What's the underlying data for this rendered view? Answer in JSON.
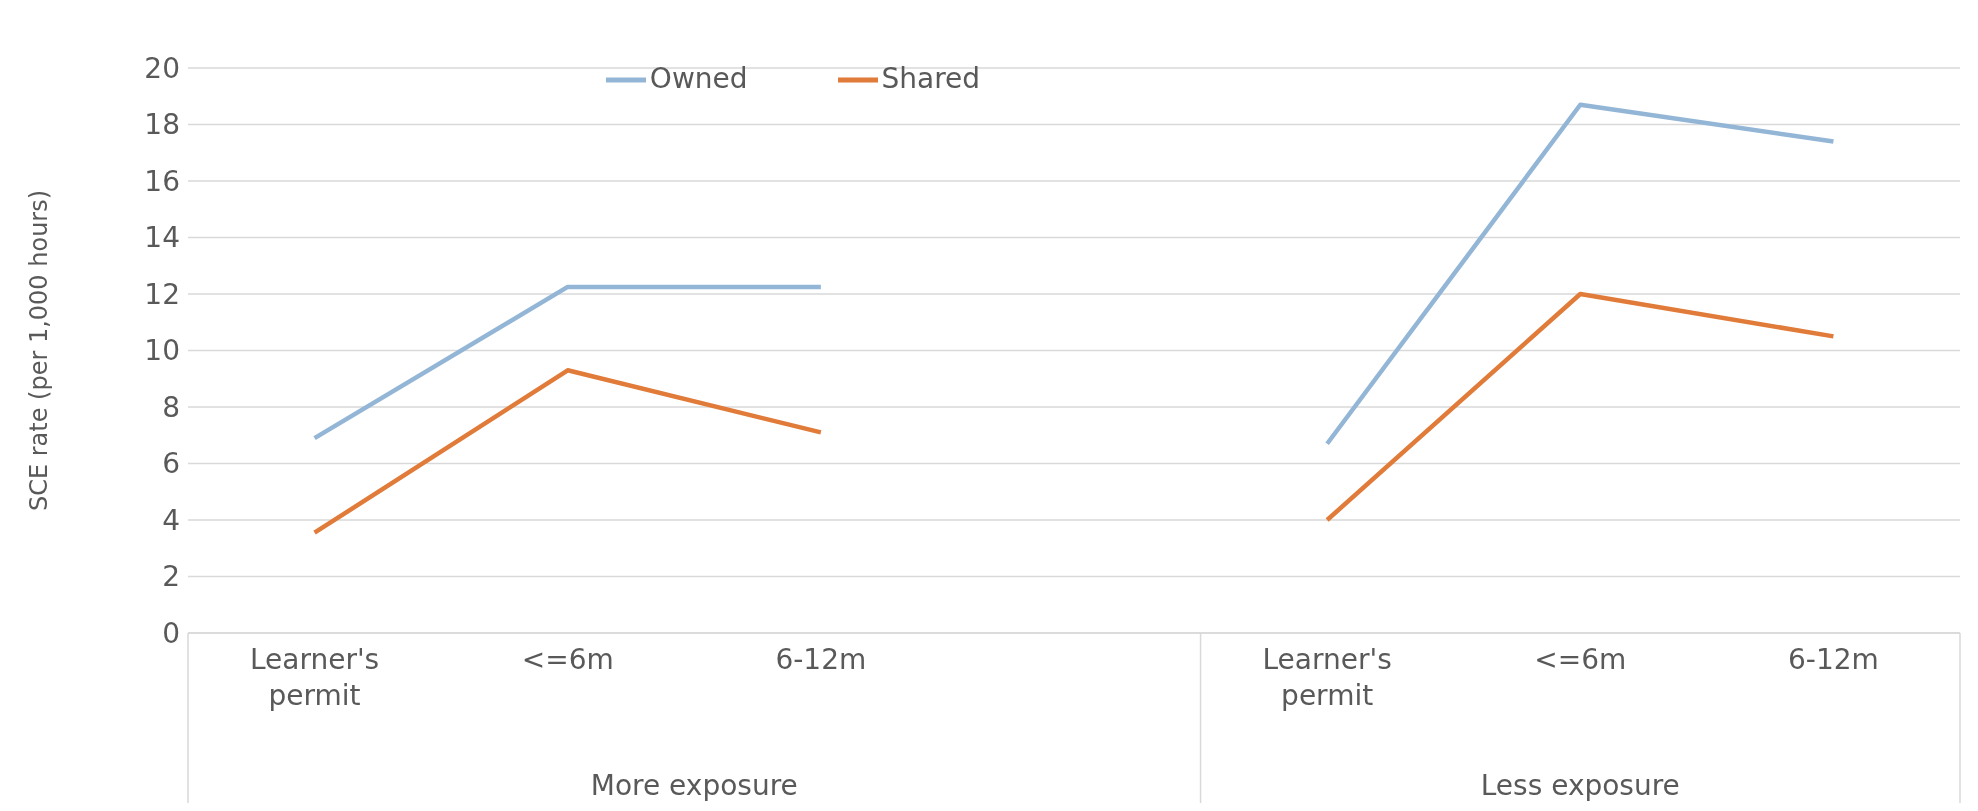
{
  "chart_data": {
    "type": "line",
    "ylabel": "SCE rate (per 1,000 hours)",
    "categories": [
      "Learner's permit",
      "<=6m",
      "6-12m",
      null,
      "Learner's permit",
      "<=6m",
      "6-12m"
    ],
    "series": [
      {
        "name": "Owned",
        "color": "#93b6d6",
        "values": [
          6.9,
          12.25,
          12.25,
          null,
          6.7,
          18.7,
          17.4
        ]
      },
      {
        "name": "Shared",
        "color": "#e07b39",
        "values": [
          3.55,
          9.3,
          7.1,
          null,
          4.0,
          12.0,
          10.5
        ]
      }
    ],
    "annotations": [
      "More exposure",
      "Less exposure"
    ],
    "ylim": [
      0,
      20
    ],
    "yticks": [
      0,
      2,
      4,
      6,
      8,
      10,
      12,
      14,
      16,
      18,
      20
    ],
    "grid": "y",
    "legend": "top",
    "marker": "none",
    "line_style": "solid"
  }
}
